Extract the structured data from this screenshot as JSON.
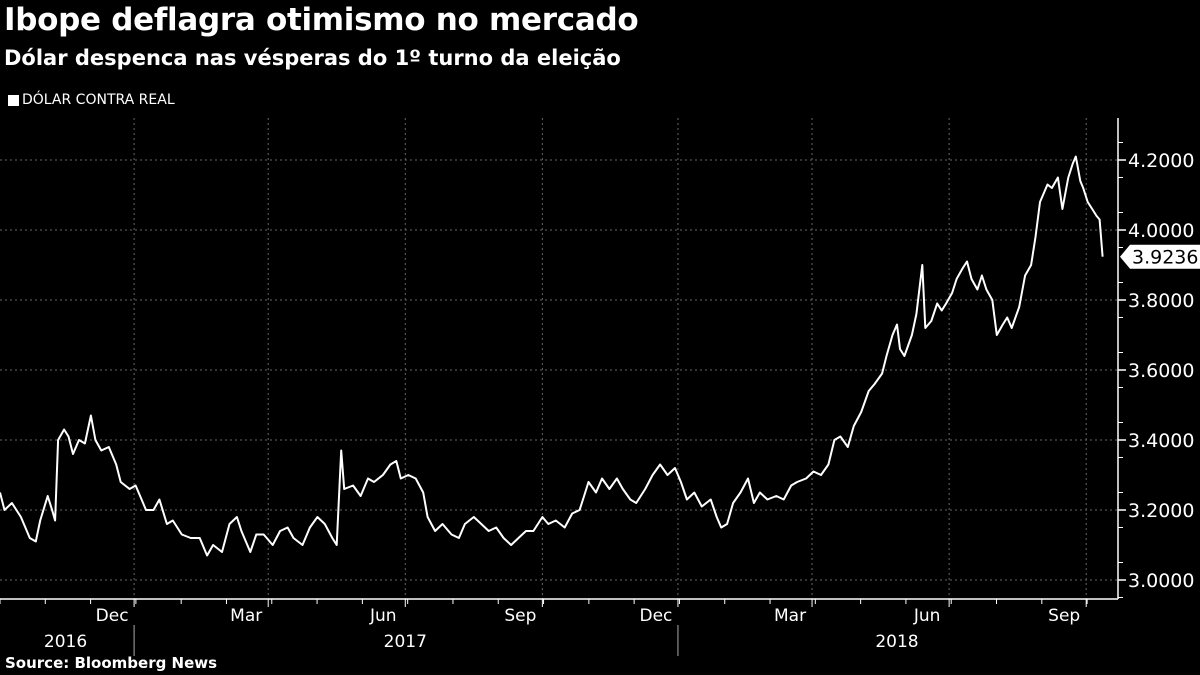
{
  "title": "Ibope deflagra otimismo no mercado",
  "subtitle": "Dólar despenca nas vésperas do 1º turno da eleição",
  "legend": "DÓLAR CONTRA REAL",
  "source": "Source: Bloomberg News",
  "colors": {
    "background": "#000000",
    "line": "#ffffff",
    "grid": "#666666"
  },
  "chart_data": {
    "type": "line",
    "title": "Ibope deflagra otimismo no mercado",
    "series_name": "DÓLAR CONTRA REAL",
    "x_unit": "days since 2016-09-02",
    "ylim": [
      2.95,
      4.3
    ],
    "y_ticks": [
      "3.0000",
      "3.2000",
      "3.4000",
      "3.6000",
      "3.8000",
      "4.0000",
      "4.2000"
    ],
    "y_tick_values": [
      3.0,
      3.2,
      3.4,
      3.6,
      3.8,
      4.0,
      4.2
    ],
    "month_ticks": [
      {
        "label": "Dec",
        "day": 90
      },
      {
        "label": "Mar",
        "day": 180
      },
      {
        "label": "Jun",
        "day": 272
      },
      {
        "label": "Sep",
        "day": 364
      },
      {
        "label": "Dec",
        "day": 455
      },
      {
        "label": "Mar",
        "day": 545
      },
      {
        "label": "Jun",
        "day": 637
      },
      {
        "label": "Sep",
        "day": 729
      }
    ],
    "year_labels": [
      {
        "label": "2016",
        "day": 44
      },
      {
        "label": "2017",
        "day": 272
      },
      {
        "label": "2018",
        "day": 602
      }
    ],
    "year_dividers": [
      90,
      455
    ],
    "last_value": "3.9236",
    "grid": true,
    "points": [
      [
        0,
        3.25
      ],
      [
        3,
        3.2
      ],
      [
        8,
        3.22
      ],
      [
        14,
        3.18
      ],
      [
        20,
        3.12
      ],
      [
        24,
        3.11
      ],
      [
        27,
        3.17
      ],
      [
        32,
        3.24
      ],
      [
        35,
        3.2
      ],
      [
        37,
        3.17
      ],
      [
        39,
        3.4
      ],
      [
        43,
        3.43
      ],
      [
        46,
        3.41
      ],
      [
        49,
        3.36
      ],
      [
        53,
        3.4
      ],
      [
        57,
        3.39
      ],
      [
        61,
        3.47
      ],
      [
        64,
        3.4
      ],
      [
        68,
        3.37
      ],
      [
        73,
        3.38
      ],
      [
        78,
        3.33
      ],
      [
        81,
        3.28
      ],
      [
        87,
        3.26
      ],
      [
        91,
        3.27
      ],
      [
        95,
        3.23
      ],
      [
        98,
        3.2
      ],
      [
        103,
        3.2
      ],
      [
        107,
        3.23
      ],
      [
        112,
        3.16
      ],
      [
        116,
        3.17
      ],
      [
        122,
        3.13
      ],
      [
        128,
        3.12
      ],
      [
        134,
        3.12
      ],
      [
        139,
        3.07
      ],
      [
        143,
        3.1
      ],
      [
        149,
        3.08
      ],
      [
        154,
        3.16
      ],
      [
        159,
        3.18
      ],
      [
        162,
        3.14
      ],
      [
        168,
        3.08
      ],
      [
        172,
        3.13
      ],
      [
        177,
        3.13
      ],
      [
        183,
        3.1
      ],
      [
        188,
        3.14
      ],
      [
        193,
        3.15
      ],
      [
        197,
        3.12
      ],
      [
        203,
        3.1
      ],
      [
        208,
        3.15
      ],
      [
        213,
        3.18
      ],
      [
        218,
        3.16
      ],
      [
        223,
        3.12
      ],
      [
        226,
        3.1
      ],
      [
        229,
        3.37
      ],
      [
        231,
        3.26
      ],
      [
        237,
        3.27
      ],
      [
        242,
        3.24
      ],
      [
        247,
        3.29
      ],
      [
        251,
        3.28
      ],
      [
        257,
        3.3
      ],
      [
        262,
        3.33
      ],
      [
        266,
        3.34
      ],
      [
        269,
        3.29
      ],
      [
        274,
        3.3
      ],
      [
        279,
        3.29
      ],
      [
        284,
        3.25
      ],
      [
        287,
        3.18
      ],
      [
        292,
        3.14
      ],
      [
        297,
        3.16
      ],
      [
        303,
        3.13
      ],
      [
        308,
        3.12
      ],
      [
        312,
        3.16
      ],
      [
        318,
        3.18
      ],
      [
        323,
        3.16
      ],
      [
        328,
        3.14
      ],
      [
        333,
        3.15
      ],
      [
        338,
        3.12
      ],
      [
        343,
        3.1
      ],
      [
        348,
        3.12
      ],
      [
        353,
        3.14
      ],
      [
        358,
        3.14
      ],
      [
        364,
        3.18
      ],
      [
        368,
        3.16
      ],
      [
        373,
        3.17
      ],
      [
        379,
        3.15
      ],
      [
        384,
        3.19
      ],
      [
        389,
        3.2
      ],
      [
        392,
        3.24
      ],
      [
        395,
        3.28
      ],
      [
        400,
        3.25
      ],
      [
        404,
        3.29
      ],
      [
        409,
        3.26
      ],
      [
        414,
        3.29
      ],
      [
        418,
        3.26
      ],
      [
        423,
        3.23
      ],
      [
        427,
        3.22
      ],
      [
        433,
        3.26
      ],
      [
        438,
        3.3
      ],
      [
        443,
        3.33
      ],
      [
        448,
        3.3
      ],
      [
        453,
        3.32
      ],
      [
        457,
        3.28
      ],
      [
        461,
        3.23
      ],
      [
        466,
        3.25
      ],
      [
        471,
        3.21
      ],
      [
        477,
        3.23
      ],
      [
        481,
        3.18
      ],
      [
        484,
        3.15
      ],
      [
        488,
        3.16
      ],
      [
        492,
        3.22
      ],
      [
        497,
        3.25
      ],
      [
        502,
        3.29
      ],
      [
        506,
        3.22
      ],
      [
        510,
        3.25
      ],
      [
        515,
        3.23
      ],
      [
        521,
        3.24
      ],
      [
        526,
        3.23
      ],
      [
        531,
        3.27
      ],
      [
        535,
        3.28
      ],
      [
        541,
        3.29
      ],
      [
        546,
        3.31
      ],
      [
        551,
        3.3
      ],
      [
        556,
        3.33
      ],
      [
        560,
        3.4
      ],
      [
        564,
        3.41
      ],
      [
        569,
        3.38
      ],
      [
        573,
        3.44
      ],
      [
        578,
        3.48
      ],
      [
        583,
        3.54
      ],
      [
        587,
        3.56
      ],
      [
        592,
        3.59
      ],
      [
        595,
        3.64
      ],
      [
        599,
        3.7
      ],
      [
        602,
        3.73
      ],
      [
        604,
        3.66
      ],
      [
        607,
        3.64
      ],
      [
        612,
        3.7
      ],
      [
        615,
        3.76
      ],
      [
        619,
        3.9
      ],
      [
        621,
        3.72
      ],
      [
        625,
        3.74
      ],
      [
        629,
        3.79
      ],
      [
        632,
        3.77
      ],
      [
        635,
        3.79
      ],
      [
        639,
        3.82
      ],
      [
        642,
        3.86
      ],
      [
        646,
        3.89
      ],
      [
        649,
        3.91
      ],
      [
        652,
        3.86
      ],
      [
        656,
        3.83
      ],
      [
        659,
        3.87
      ],
      [
        662,
        3.83
      ],
      [
        666,
        3.8
      ],
      [
        669,
        3.7
      ],
      [
        673,
        3.73
      ],
      [
        676,
        3.75
      ],
      [
        679,
        3.72
      ],
      [
        684,
        3.78
      ],
      [
        688,
        3.87
      ],
      [
        692,
        3.9
      ],
      [
        695,
        3.98
      ],
      [
        698,
        4.08
      ],
      [
        700,
        4.1
      ],
      [
        703,
        4.13
      ],
      [
        706,
        4.12
      ],
      [
        710,
        4.15
      ],
      [
        713,
        4.06
      ],
      [
        717,
        4.15
      ],
      [
        720,
        4.19
      ],
      [
        722,
        4.21
      ],
      [
        725,
        4.14
      ],
      [
        727,
        4.12
      ],
      [
        730,
        4.08
      ],
      [
        733,
        4.06
      ],
      [
        736,
        4.04
      ],
      [
        738,
        4.03
      ],
      [
        740,
        3.9236
      ]
    ]
  }
}
